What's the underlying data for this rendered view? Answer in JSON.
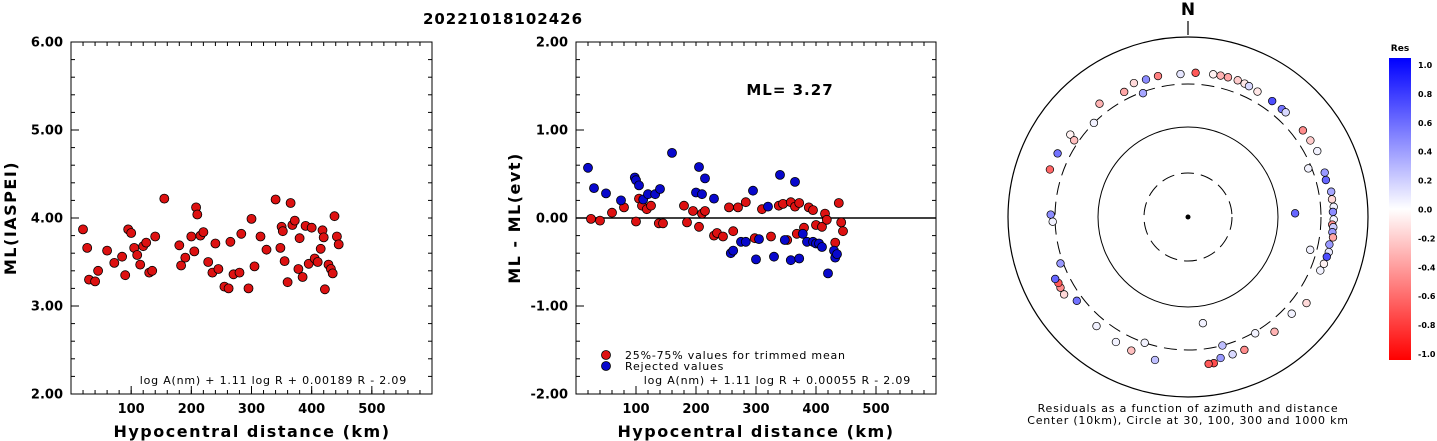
{
  "title": "20221018102426",
  "colors": {
    "accepted": "#dd1111",
    "rejected": "#0808cc",
    "axis": "#000000"
  },
  "chart_data": [
    {
      "type": "scatter",
      "title": "",
      "xlabel": "Hypocentral distance (km)",
      "ylabel": "ML(IASPEI)",
      "xlim": [
        0,
        600
      ],
      "ylim": [
        2.0,
        6.0
      ],
      "xticks": [
        "100",
        "200",
        "300",
        "400",
        "500"
      ],
      "yticks": [
        "2.00",
        "3.00",
        "4.00",
        "5.00",
        "6.00"
      ],
      "formula": "log A(nm) + 1.11 log R + 0.00189 R - 2.09",
      "series": [
        {
          "color": "accepted",
          "points": [
            [
              20,
              3.87
            ],
            [
              27,
              3.66
            ],
            [
              30,
              3.3
            ],
            [
              40,
              3.28
            ],
            [
              45,
              3.4
            ],
            [
              60,
              3.63
            ],
            [
              72,
              3.49
            ],
            [
              85,
              3.56
            ],
            [
              90,
              3.35
            ],
            [
              95,
              3.87
            ],
            [
              100,
              3.83
            ],
            [
              105,
              3.66
            ],
            [
              110,
              3.58
            ],
            [
              115,
              3.47
            ],
            [
              120,
              3.68
            ],
            [
              125,
              3.72
            ],
            [
              130,
              3.38
            ],
            [
              135,
              3.4
            ],
            [
              140,
              3.79
            ],
            [
              155,
              4.22
            ],
            [
              180,
              3.69
            ],
            [
              183,
              3.46
            ],
            [
              190,
              3.55
            ],
            [
              200,
              3.79
            ],
            [
              205,
              3.62
            ],
            [
              208,
              4.12
            ],
            [
              210,
              4.04
            ],
            [
              215,
              3.8
            ],
            [
              220,
              3.84
            ],
            [
              228,
              3.5
            ],
            [
              235,
              3.38
            ],
            [
              240,
              3.71
            ],
            [
              245,
              3.42
            ],
            [
              255,
              3.22
            ],
            [
              262,
              3.2
            ],
            [
              265,
              3.73
            ],
            [
              270,
              3.36
            ],
            [
              280,
              3.38
            ],
            [
              283,
              3.82
            ],
            [
              295,
              3.2
            ],
            [
              300,
              3.99
            ],
            [
              305,
              3.45
            ],
            [
              315,
              3.79
            ],
            [
              325,
              3.64
            ],
            [
              340,
              4.21
            ],
            [
              348,
              3.66
            ],
            [
              350,
              3.9
            ],
            [
              352,
              3.85
            ],
            [
              355,
              3.51
            ],
            [
              360,
              3.27
            ],
            [
              365,
              4.17
            ],
            [
              368,
              3.92
            ],
            [
              372,
              3.97
            ],
            [
              378,
              3.42
            ],
            [
              380,
              3.77
            ],
            [
              385,
              3.33
            ],
            [
              390,
              3.91
            ],
            [
              395,
              3.48
            ],
            [
              400,
              3.89
            ],
            [
              405,
              3.54
            ],
            [
              410,
              3.5
            ],
            [
              415,
              3.65
            ],
            [
              418,
              3.86
            ],
            [
              420,
              3.78
            ],
            [
              422,
              3.19
            ],
            [
              428,
              3.47
            ],
            [
              432,
              3.42
            ],
            [
              435,
              3.37
            ],
            [
              438,
              4.02
            ],
            [
              442,
              3.79
            ],
            [
              445,
              3.7
            ]
          ]
        }
      ]
    },
    {
      "type": "scatter",
      "title": "",
      "xlabel": "Hypocentral distance (km)",
      "ylabel": "ML - ML(evt)",
      "xlim": [
        0,
        600
      ],
      "ylim": [
        -2.0,
        2.0
      ],
      "xticks": [
        "100",
        "200",
        "300",
        "400",
        "500"
      ],
      "yticks": [
        "-2.00",
        "-1.00",
        "0.00",
        "1.00",
        "2.00"
      ],
      "annotation": "ML= 3.27",
      "reference_line": 0,
      "legend": [
        {
          "label": "25%-75% values for trimmed mean",
          "color": "accepted"
        },
        {
          "label": "Rejected values",
          "color": "rejected"
        }
      ],
      "formula": "log A(nm) + 1.11 log R + 0.00055 R - 2.09",
      "series": [
        {
          "name": "25%-75% values for trimmed mean",
          "color": "accepted",
          "points": [
            [
              25,
              -0.01
            ],
            [
              40,
              -0.03
            ],
            [
              60,
              0.06
            ],
            [
              80,
              0.12
            ],
            [
              100,
              -0.04
            ],
            [
              105,
              0.22
            ],
            [
              110,
              0.14
            ],
            [
              118,
              0.1
            ],
            [
              125,
              0.14
            ],
            [
              138,
              -0.06
            ],
            [
              145,
              -0.06
            ],
            [
              180,
              0.14
            ],
            [
              185,
              -0.05
            ],
            [
              195,
              0.08
            ],
            [
              205,
              -0.1
            ],
            [
              210,
              0.05
            ],
            [
              215,
              0.08
            ],
            [
              230,
              -0.2
            ],
            [
              235,
              -0.17
            ],
            [
              245,
              -0.21
            ],
            [
              255,
              0.12
            ],
            [
              262,
              -0.15
            ],
            [
              270,
              0.12
            ],
            [
              283,
              0.18
            ],
            [
              298,
              -0.23
            ],
            [
              310,
              0.1
            ],
            [
              325,
              -0.21
            ],
            [
              338,
              0.14
            ],
            [
              345,
              0.16
            ],
            [
              352,
              -0.25
            ],
            [
              358,
              0.18
            ],
            [
              365,
              0.13
            ],
            [
              368,
              -0.18
            ],
            [
              372,
              0.17
            ],
            [
              380,
              -0.11
            ],
            [
              388,
              0.12
            ],
            [
              395,
              0.09
            ],
            [
              400,
              -0.08
            ],
            [
              410,
              -0.1
            ],
            [
              415,
              0.05
            ],
            [
              418,
              -0.02
            ],
            [
              432,
              -0.28
            ],
            [
              438,
              0.17
            ],
            [
              442,
              -0.05
            ],
            [
              445,
              -0.15
            ]
          ]
        },
        {
          "name": "Rejected values",
          "color": "rejected",
          "points": [
            [
              20,
              0.57
            ],
            [
              30,
              0.34
            ],
            [
              50,
              0.28
            ],
            [
              75,
              0.2
            ],
            [
              98,
              0.46
            ],
            [
              100,
              0.43
            ],
            [
              105,
              0.37
            ],
            [
              112,
              0.21
            ],
            [
              120,
              0.27
            ],
            [
              132,
              0.27
            ],
            [
              140,
              0.33
            ],
            [
              160,
              0.74
            ],
            [
              200,
              0.29
            ],
            [
              205,
              0.58
            ],
            [
              210,
              0.27
            ],
            [
              215,
              0.45
            ],
            [
              230,
              0.22
            ],
            [
              258,
              -0.4
            ],
            [
              262,
              -0.37
            ],
            [
              275,
              -0.27
            ],
            [
              283,
              -0.27
            ],
            [
              295,
              0.31
            ],
            [
              300,
              -0.47
            ],
            [
              305,
              -0.24
            ],
            [
              320,
              0.13
            ],
            [
              330,
              -0.44
            ],
            [
              340,
              0.49
            ],
            [
              348,
              -0.25
            ],
            [
              358,
              -0.48
            ],
            [
              365,
              0.41
            ],
            [
              372,
              -0.46
            ],
            [
              378,
              -0.18
            ],
            [
              385,
              -0.27
            ],
            [
              395,
              -0.27
            ],
            [
              400,
              -0.29
            ],
            [
              405,
              -0.29
            ],
            [
              410,
              -0.33
            ],
            [
              420,
              -0.63
            ],
            [
              430,
              -0.37
            ],
            [
              432,
              -0.45
            ],
            [
              435,
              -0.41
            ]
          ]
        }
      ]
    },
    {
      "type": "scatter",
      "polar": true,
      "north_label": "N",
      "caption_lines": [
        "Residuals as a function of azimuth and distance",
        "Center (10km), Circle at 30, 100, 300 and 1000 km"
      ],
      "ring_radii_km": [
        30,
        100,
        300,
        1000
      ],
      "legend_title": "Res",
      "colorbar_ticks": [
        "1.0",
        "0.8",
        "0.6",
        "0.4",
        "0.2",
        "0.0",
        "-0.2",
        "-0.4",
        "-0.6",
        "-0.8",
        "-1.0"
      ],
      "colorbar_range": [
        -1.0,
        1.0
      ],
      "stations": [
        [
          3,
          470,
          -0.65
        ],
        [
          10,
          478,
          -0.05
        ],
        [
          13,
          480,
          -0.3
        ],
        [
          16,
          483,
          -0.35
        ],
        [
          20,
          485,
          -0.2
        ],
        [
          23,
          478,
          -0.1
        ],
        [
          25,
          468,
          0.15
        ],
        [
          29,
          455,
          -0.1
        ],
        [
          36,
          452,
          0.7
        ],
        [
          41,
          448,
          0.55
        ],
        [
          43,
          452,
          0.15
        ],
        [
          53,
          462,
          -0.45
        ],
        [
          58,
          468,
          -0.2
        ],
        [
          63,
          480,
          0.05
        ],
        [
          68,
          285,
          0.05
        ],
        [
          72,
          460,
          0.4
        ],
        [
          75,
          445,
          0.6
        ],
        [
          80,
          485,
          0.35
        ],
        [
          83,
          480,
          -0.15
        ],
        [
          86,
          495,
          0.05
        ],
        [
          88,
          478,
          0.45
        ],
        [
          91,
          490,
          0.05
        ],
        [
          93,
          470,
          -0.45
        ],
        [
          94,
          488,
          0.2
        ],
        [
          96,
          482,
          0.4
        ],
        [
          98,
          500,
          -0.35
        ],
        [
          101,
          465,
          0.4
        ],
        [
          104,
          480,
          0.1
        ],
        [
          106,
          470,
          0.7
        ],
        [
          109,
          460,
          -0.05
        ],
        [
          112,
          445,
          0.05
        ],
        [
          105,
          270,
          0.05
        ],
        [
          88,
          180,
          0.6
        ],
        [
          126,
          500,
          -0.15
        ],
        [
          133,
          430,
          0.05
        ],
        [
          143,
          460,
          -0.3
        ],
        [
          157,
          470,
          -0.45
        ],
        [
          162,
          470,
          0.15
        ],
        [
          167,
          475,
          0.4
        ],
        [
          170,
          530,
          -0.7
        ],
        [
          172,
          528,
          -0.65
        ],
        [
          150,
          320,
          0.05
        ],
        [
          165,
          300,
          0.25
        ],
        [
          172,
          180,
          0.05
        ],
        [
          199,
          300,
          0.05
        ],
        [
          193,
          505,
          0.25
        ],
        [
          203,
          480,
          -0.25
        ],
        [
          210,
          468,
          0.05
        ],
        [
          220,
          440,
          0.05
        ],
        [
          233,
          392,
          0.55
        ],
        [
          238,
          495,
          -0.15
        ],
        [
          241,
          490,
          -0.45
        ],
        [
          243,
          485,
          -0.65
        ],
        [
          245,
          502,
          0.6
        ],
        [
          250,
          340,
          0.4
        ],
        [
          268,
          336,
          0.05
        ],
        [
          271,
          365,
          0.45
        ],
        [
          289,
          494,
          -0.6
        ],
        [
          296,
          480,
          0.55
        ],
        [
          305,
          460,
          -0.05
        ],
        [
          304,
          363,
          -0.25
        ],
        [
          315,
          302,
          0.05
        ],
        [
          322,
          460,
          -0.3
        ],
        [
          333,
          411,
          -0.35
        ],
        [
          338,
          470,
          -0.15
        ],
        [
          343,
          460,
          0.45
        ],
        [
          348,
          465,
          -0.5
        ],
        [
          340,
          294,
          0.35
        ],
        [
          357,
          450,
          0.1
        ]
      ]
    }
  ]
}
